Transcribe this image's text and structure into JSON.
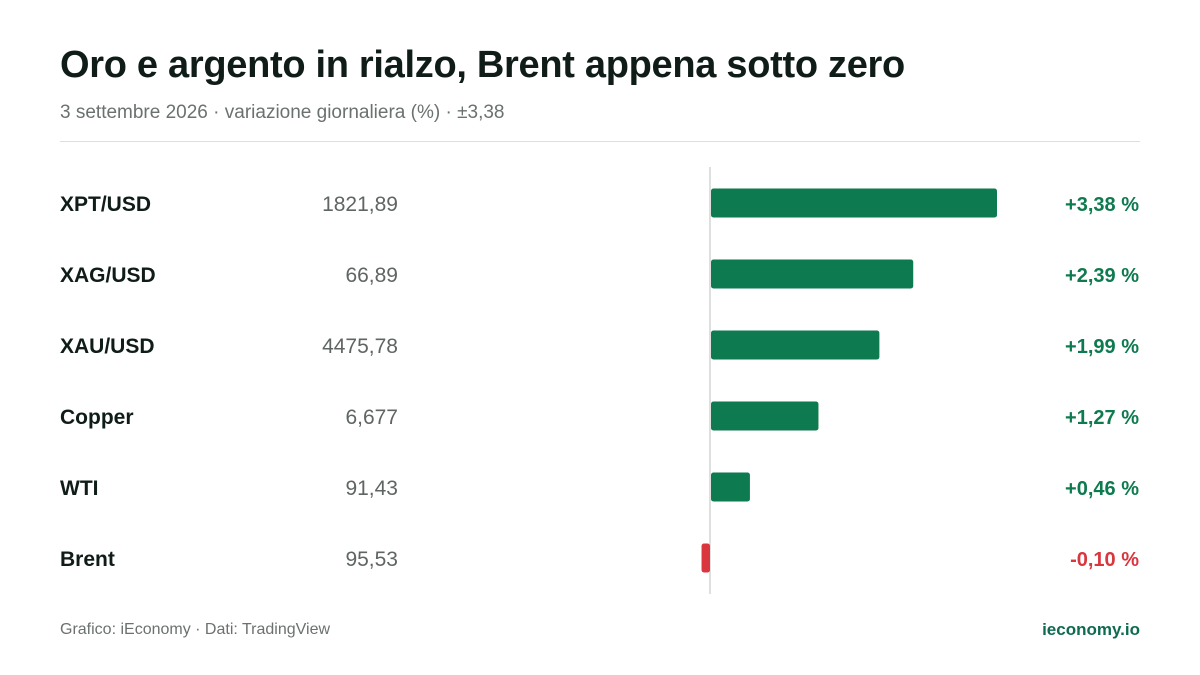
{
  "header": {
    "title": "Oro e argento in rialzo, Brent appena sotto zero",
    "subtitle": "3 settembre 2026 · variazione giornaliera (%) · ±3,38"
  },
  "chart_data": {
    "type": "bar",
    "orientation": "horizontal",
    "categories": [
      "XPT/USD",
      "XAG/USD",
      "XAU/USD",
      "Copper",
      "WTI",
      "Brent"
    ],
    "prices": [
      "1821,89",
      "66,89",
      "4475,78",
      "6,677",
      "91,43",
      "95,53"
    ],
    "values": [
      3.38,
      2.39,
      1.99,
      1.27,
      0.46,
      -0.1
    ],
    "value_labels": [
      "+3,38 %",
      "+2,39 %",
      "+1,99 %",
      "+1,27 %",
      "+0,46 %",
      "-0,10 %"
    ],
    "xlim": [
      -3.38,
      3.38
    ],
    "grid": false,
    "colors": {
      "positive": "#0e7a4f",
      "negative": "#d9363e",
      "baseline": "#d3d6d5"
    }
  },
  "footer": {
    "credit": "Grafico: iEconomy · Dati: TradingView",
    "brand": "ieconomy.io"
  }
}
